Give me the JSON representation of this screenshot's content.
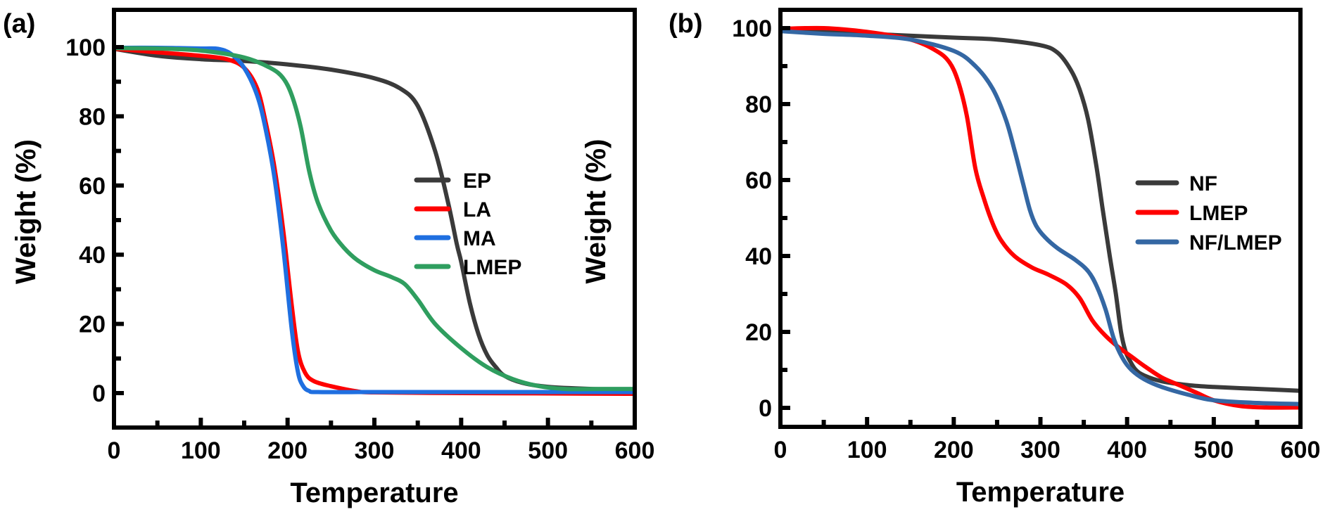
{
  "chart_data": [
    {
      "type": "line",
      "panel_label": "(a)",
      "title": "",
      "xlabel": "Temperature",
      "ylabel": "Weight (%)",
      "xlim": [
        0,
        600
      ],
      "ylim": [
        -10,
        111
      ],
      "xticks": [
        0,
        100,
        200,
        300,
        400,
        500,
        600
      ],
      "yticks": [
        0,
        20,
        40,
        60,
        80,
        100
      ],
      "grid": false,
      "legend_position": "center-right",
      "series": [
        {
          "name": "EP",
          "color": "#3a3a3a",
          "x": [
            0,
            50,
            100,
            150,
            200,
            250,
            300,
            330,
            350,
            370,
            385,
            395,
            400,
            410,
            420,
            430,
            440,
            450,
            470,
            500,
            550,
            600
          ],
          "y": [
            99.5,
            97.5,
            96.5,
            96,
            95,
            93.5,
            91,
            88,
            83,
            70,
            55,
            43,
            38,
            26,
            17,
            11,
            7.5,
            5,
            3,
            1.8,
            1.2,
            1
          ]
        },
        {
          "name": "LA",
          "color": "#ff0000",
          "x": [
            0,
            50,
            100,
            130,
            150,
            165,
            175,
            185,
            195,
            205,
            212,
            220,
            230,
            250,
            280,
            300,
            400,
            500,
            600
          ],
          "y": [
            99.5,
            98.5,
            97.5,
            96.5,
            94,
            88,
            78,
            65,
            47,
            25,
            12,
            6,
            3.5,
            2,
            0.5,
            0.2,
            0,
            -0.1,
            -0.2
          ]
        },
        {
          "name": "MA",
          "color": "#1f6fe0",
          "x": [
            0,
            50,
            100,
            120,
            135,
            150,
            165,
            175,
            185,
            195,
            205,
            212,
            218,
            225,
            235,
            300,
            400,
            500,
            600
          ],
          "y": [
            99.8,
            99.8,
            99.6,
            99.5,
            98,
            94,
            86,
            76,
            62,
            42,
            18,
            6,
            2,
            0.6,
            0.3,
            0.3,
            0.3,
            0.3,
            0.3
          ]
        },
        {
          "name": "LMEP",
          "color": "#2f9e5f",
          "x": [
            0,
            50,
            100,
            150,
            180,
            195,
            205,
            215,
            225,
            235,
            250,
            265,
            280,
            300,
            320,
            335,
            350,
            370,
            400,
            430,
            460,
            490,
            520,
            560,
            600
          ],
          "y": [
            99.7,
            99.6,
            99,
            97,
            94,
            91,
            86,
            77,
            64,
            55,
            47,
            42,
            38.5,
            35.5,
            33.5,
            31.5,
            27,
            20,
            13,
            7.5,
            4,
            2,
            1.2,
            1.2,
            1.2
          ]
        }
      ]
    },
    {
      "type": "line",
      "panel_label": "(b)",
      "title": "",
      "xlabel": "Temperature",
      "ylabel": "Weight (%)",
      "xlim": [
        0,
        600
      ],
      "ylim": [
        -5,
        105
      ],
      "xticks": [
        0,
        100,
        200,
        300,
        400,
        500,
        600
      ],
      "yticks": [
        0,
        20,
        40,
        60,
        80,
        100
      ],
      "grid": false,
      "legend_position": "center-right",
      "series": [
        {
          "name": "NF",
          "color": "#3a3a3a",
          "x": [
            0,
            100,
            200,
            250,
            300,
            320,
            335,
            345,
            355,
            365,
            372,
            380,
            387,
            393,
            398,
            403,
            410,
            420,
            440,
            470,
            500,
            550,
            600
          ],
          "y": [
            99.5,
            98.5,
            97.5,
            97,
            95.5,
            93.5,
            89,
            84,
            76,
            63,
            52,
            40,
            30,
            20,
            15,
            12.5,
            10,
            8.5,
            7,
            6,
            5.5,
            5,
            4.5
          ]
        },
        {
          "name": "LMEP",
          "color": "#ff0000",
          "x": [
            0,
            50,
            100,
            150,
            180,
            195,
            205,
            215,
            225,
            235,
            245,
            255,
            270,
            290,
            310,
            330,
            345,
            360,
            375,
            390,
            405,
            420,
            440,
            460,
            480,
            500,
            530,
            560,
            600
          ],
          "y": [
            99.8,
            100,
            99,
            97,
            94,
            91,
            86,
            77,
            63,
            55,
            48.5,
            44,
            40,
            37,
            35,
            32.5,
            29,
            23,
            19,
            16,
            13.5,
            11,
            8,
            6,
            4,
            2,
            0.5,
            0.1,
            0.1
          ]
        },
        {
          "name": "NF/LMEP",
          "color": "#3467a3",
          "x": [
            0,
            50,
            100,
            150,
            200,
            225,
            245,
            260,
            270,
            280,
            288,
            295,
            305,
            320,
            340,
            355,
            365,
            375,
            385,
            395,
            405,
            420,
            440,
            470,
            500,
            550,
            600
          ],
          "y": [
            99.2,
            98.5,
            98,
            97,
            94,
            90,
            84,
            76,
            68,
            59,
            52,
            48,
            45,
            42,
            39,
            36,
            32,
            26,
            18,
            13,
            10,
            7.5,
            5.5,
            3.5,
            2,
            1.3,
            1
          ]
        }
      ]
    }
  ]
}
